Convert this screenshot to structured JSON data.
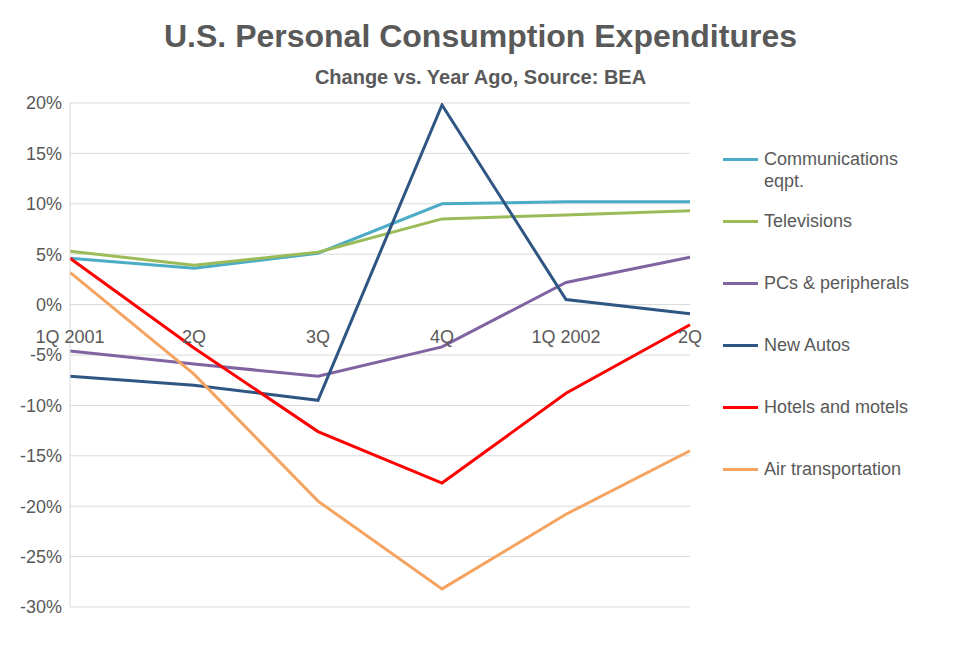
{
  "chart_data": {
    "type": "line",
    "title": "U.S. Personal Consumption Expenditures",
    "subtitle": "Change vs. Year Ago, Source: BEA",
    "categories": [
      "1Q 2001",
      "2Q",
      "3Q",
      "4Q",
      "1Q 2002",
      "2Q"
    ],
    "series": [
      {
        "name": "Communications eqpt.",
        "color": "#4BACC6",
        "values": [
          4.6,
          3.6,
          5.1,
          10.0,
          10.2,
          10.2
        ]
      },
      {
        "name": "Televisions",
        "color": "#9BBB59",
        "values": [
          5.3,
          3.9,
          5.2,
          8.5,
          8.9,
          9.3
        ]
      },
      {
        "name": "PCs & peripherals",
        "color": "#8064A2",
        "values": [
          -4.6,
          -5.9,
          -7.1,
          -4.2,
          2.2,
          4.7
        ]
      },
      {
        "name": "New Autos",
        "color": "#2F5683",
        "values": [
          -7.1,
          -8.0,
          -9.5,
          19.8,
          0.5,
          -0.9
        ]
      },
      {
        "name": "Hotels and motels",
        "color": "#FF0000",
        "values": [
          4.6,
          -4.3,
          -12.6,
          -17.7,
          -8.8,
          -2.0
        ]
      },
      {
        "name": "Air transportation",
        "color": "#F4A460",
        "values": [
          3.2,
          -6.9,
          -19.5,
          -28.2,
          -20.8,
          -14.5
        ]
      }
    ],
    "ylim": [
      -30,
      20
    ],
    "yticks": [
      {
        "value": -30,
        "label": "-30%"
      },
      {
        "value": -25,
        "label": "-25%"
      },
      {
        "value": -20,
        "label": "-20%"
      },
      {
        "value": -15,
        "label": "-15%"
      },
      {
        "value": -10,
        "label": "-10%"
      },
      {
        "value": -5,
        "label": "-5%"
      },
      {
        "value": 0,
        "label": "0%"
      },
      {
        "value": 5,
        "label": "5%"
      },
      {
        "value": 10,
        "label": "10%"
      },
      {
        "value": 15,
        "label": "15%"
      },
      {
        "value": 20,
        "label": "20%"
      }
    ],
    "grid": true,
    "legend": "right"
  }
}
